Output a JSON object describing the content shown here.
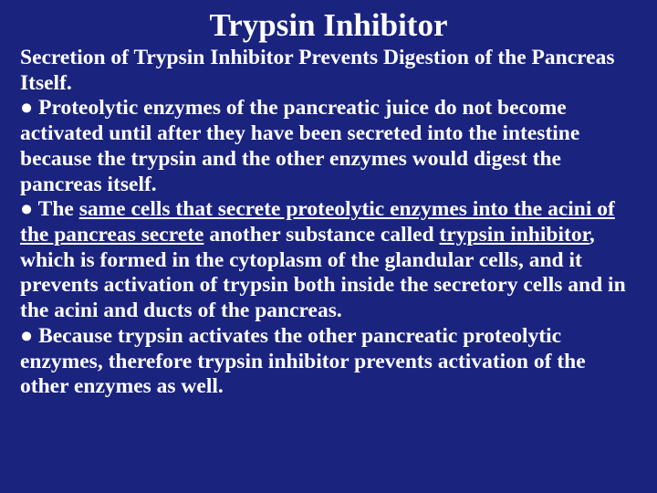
{
  "slide": {
    "background_color": "#1a237e",
    "text_color": "#ffffff",
    "font_family": "Times New Roman",
    "title": {
      "text": "Trypsin Inhibitor",
      "fontsize": 35,
      "align": "center",
      "weight": "bold"
    },
    "body_fontsize": 23.5,
    "subheading": {
      "text": "Secretion of Trypsin Inhibitor Prevents Digestion of the Pancreas Itself.",
      "weight": "bold"
    },
    "bullets": [
      {
        "prefix": "● P",
        "text": "roteolytic enzymes of the pancreatic juice do not become activated until after they have been secreted into the intestine because the trypsin and the other enzymes would digest the pancreas itself."
      },
      {
        "prefix": "●",
        "pre": " The ",
        "u1": "same cells that secrete proteolytic enzymes into the acini of the pancreas secrete",
        "mid1": " another substance called ",
        "u2": "trypsin inhibitor",
        "post": ", which is formed in the cytoplasm of the glandular cells, and it prevents activation of trypsin both inside the secretory cells and in the acini and ducts of the pancreas."
      },
      {
        "prefix": "● B",
        "text": "ecause trypsin activates the other pancreatic proteolytic enzymes, therefore trypsin inhibitor prevents activation of the other enzymes as well."
      }
    ]
  }
}
